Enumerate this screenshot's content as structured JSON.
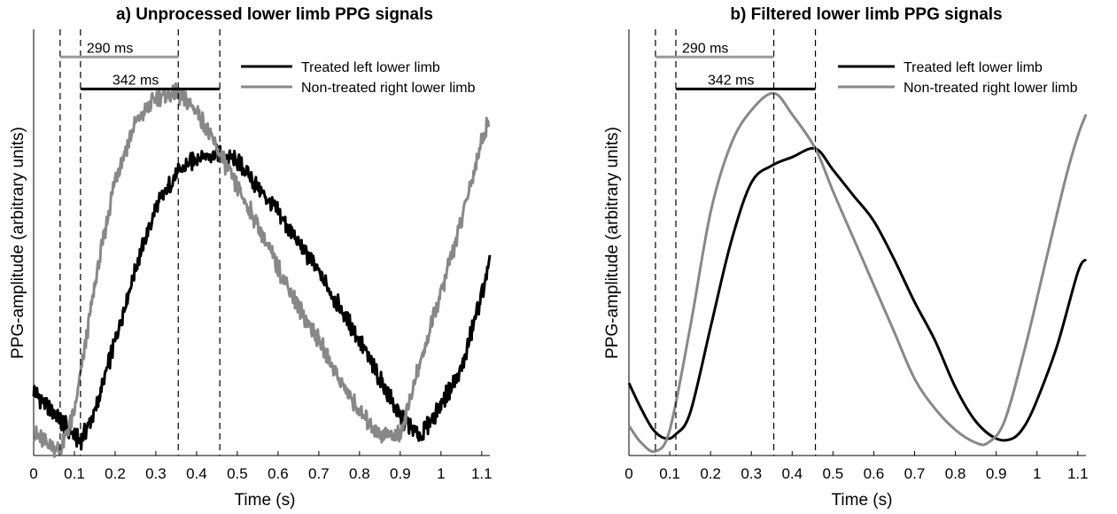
{
  "chart_data": [
    {
      "type": "line",
      "title": "a) Unprocessed lower limb PPG signals",
      "xlabel": "Time (s)",
      "ylabel": "PPG-amplitude (arbitrary units)",
      "xlim": [
        0,
        1.12
      ],
      "ylim": [
        0,
        1
      ],
      "xticks": [
        "0",
        "0.1",
        "0.2",
        "0.3",
        "0.4",
        "0.5",
        "0.6",
        "0.7",
        "0.8",
        "0.9",
        "1",
        "1.1"
      ],
      "yticks_shown": false,
      "noisy": true,
      "legend_position": "top-right",
      "series": [
        {
          "name": "Treated left lower limb",
          "color": "#000000",
          "x": [
            0,
            0.05,
            0.1,
            0.115,
            0.15,
            0.2,
            0.25,
            0.3,
            0.35,
            0.4,
            0.45,
            0.5,
            0.55,
            0.6,
            0.65,
            0.7,
            0.75,
            0.8,
            0.85,
            0.9,
            0.95,
            1.0,
            1.05,
            1.1,
            1.12
          ],
          "y": [
            0.15,
            0.1,
            0.045,
            0.035,
            0.1,
            0.27,
            0.44,
            0.58,
            0.66,
            0.7,
            0.71,
            0.69,
            0.63,
            0.57,
            0.5,
            0.43,
            0.35,
            0.27,
            0.18,
            0.09,
            0.045,
            0.12,
            0.2,
            0.38,
            0.45
          ]
        },
        {
          "name": "Non-treated right lower limb",
          "color": "#888888",
          "x": [
            0,
            0.05,
            0.065,
            0.1,
            0.15,
            0.2,
            0.25,
            0.3,
            0.35,
            0.4,
            0.45,
            0.5,
            0.55,
            0.6,
            0.65,
            0.7,
            0.75,
            0.8,
            0.85,
            0.9,
            0.95,
            1.0,
            1.05,
            1.1,
            1.12
          ],
          "y": [
            0.05,
            0.02,
            0.01,
            0.1,
            0.4,
            0.65,
            0.78,
            0.84,
            0.85,
            0.81,
            0.72,
            0.63,
            0.54,
            0.44,
            0.35,
            0.27,
            0.18,
            0.1,
            0.05,
            0.05,
            0.22,
            0.38,
            0.55,
            0.74,
            0.79
          ]
        }
      ],
      "vlines": [
        0.065,
        0.115,
        0.355,
        0.457
      ],
      "annotations": [
        {
          "label": "290 ms",
          "x_start": 0.065,
          "x_end": 0.355,
          "level": 0.935,
          "color": "#999999"
        },
        {
          "label": "342 ms",
          "x_start": 0.115,
          "x_end": 0.457,
          "level": 0.86,
          "color": "#000000"
        }
      ]
    },
    {
      "type": "line",
      "title": "b) Filtered lower limb PPG signals",
      "xlabel": "Time (s)",
      "ylabel": "PPG-amplitude (arbitrary units)",
      "xlim": [
        0,
        1.12
      ],
      "ylim": [
        0,
        1
      ],
      "xticks": [
        "0",
        "0.1",
        "0.2",
        "0.3",
        "0.4",
        "0.5",
        "0.6",
        "0.7",
        "0.8",
        "0.9",
        "1",
        "1.1"
      ],
      "yticks_shown": false,
      "noisy": false,
      "legend_position": "top-right",
      "series": [
        {
          "name": "Treated left lower limb",
          "color": "#000000",
          "x": [
            0,
            0.03,
            0.06,
            0.09,
            0.115,
            0.15,
            0.2,
            0.25,
            0.3,
            0.35,
            0.4,
            0.457,
            0.5,
            0.55,
            0.6,
            0.65,
            0.7,
            0.75,
            0.8,
            0.85,
            0.9,
            0.94,
            0.97,
            1.0,
            1.05,
            1.1,
            1.12
          ],
          "y": [
            0.17,
            0.11,
            0.06,
            0.04,
            0.05,
            0.1,
            0.3,
            0.5,
            0.64,
            0.68,
            0.7,
            0.72,
            0.67,
            0.61,
            0.55,
            0.46,
            0.36,
            0.27,
            0.16,
            0.08,
            0.04,
            0.04,
            0.07,
            0.13,
            0.26,
            0.43,
            0.46
          ]
        },
        {
          "name": "Non-treated right lower limb",
          "color": "#888888",
          "x": [
            0,
            0.03,
            0.065,
            0.1,
            0.15,
            0.2,
            0.25,
            0.3,
            0.355,
            0.4,
            0.457,
            0.5,
            0.55,
            0.6,
            0.65,
            0.7,
            0.75,
            0.8,
            0.85,
            0.88,
            0.92,
            0.97,
            1.02,
            1.07,
            1.1,
            1.12
          ],
          "y": [
            0.07,
            0.03,
            0.01,
            0.06,
            0.3,
            0.57,
            0.73,
            0.81,
            0.85,
            0.8,
            0.72,
            0.62,
            0.51,
            0.4,
            0.29,
            0.18,
            0.11,
            0.06,
            0.03,
            0.03,
            0.08,
            0.25,
            0.45,
            0.65,
            0.75,
            0.8
          ]
        }
      ],
      "vlines": [
        0.065,
        0.115,
        0.355,
        0.457
      ],
      "annotations": [
        {
          "label": "290 ms",
          "x_start": 0.065,
          "x_end": 0.355,
          "level": 0.935,
          "color": "#999999"
        },
        {
          "label": "342 ms",
          "x_start": 0.115,
          "x_end": 0.457,
          "level": 0.86,
          "color": "#000000"
        }
      ]
    }
  ]
}
